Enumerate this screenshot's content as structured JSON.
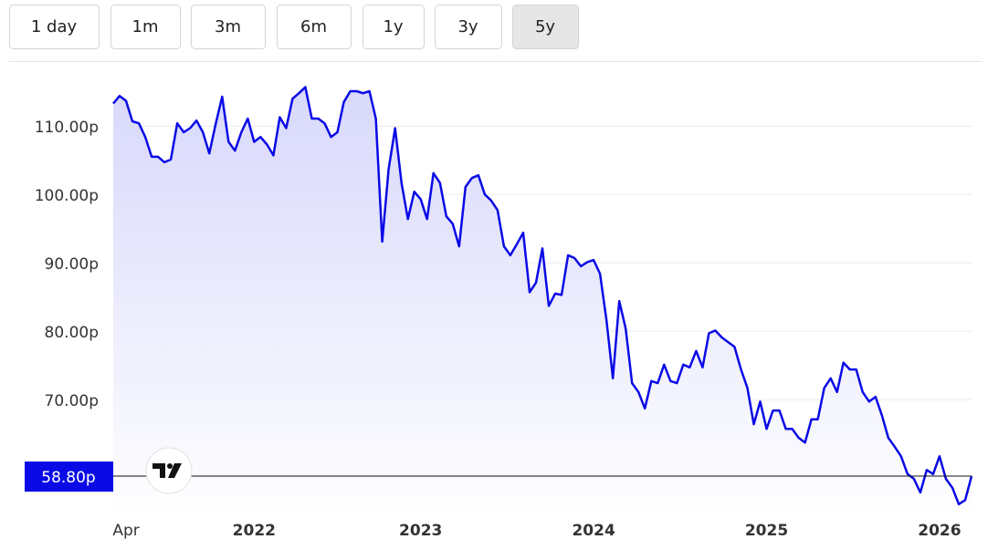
{
  "range_buttons": {
    "options": [
      "1 day",
      "1m",
      "3m",
      "6m",
      "1y",
      "3y",
      "5y"
    ],
    "selected": 6
  },
  "chart_data": {
    "type": "line",
    "categories": [
      null,
      null,
      "Apr",
      null,
      null,
      null,
      null,
      null,
      null,
      null,
      null,
      null,
      null,
      null,
      null,
      null,
      null,
      null,
      null,
      null,
      null,
      null,
      "2022",
      null,
      null,
      null,
      null,
      null,
      null,
      null,
      null,
      null,
      null,
      null,
      null,
      null,
      null,
      null,
      null,
      null,
      null,
      null,
      null,
      null,
      null,
      null,
      null,
      null,
      "2023",
      null,
      null,
      null,
      null,
      null,
      null,
      null,
      null,
      null,
      null,
      null,
      null,
      null,
      null,
      null,
      null,
      null,
      null,
      null,
      null,
      null,
      null,
      null,
      null,
      null,
      null,
      "2024",
      null,
      null,
      null,
      null,
      null,
      null,
      null,
      null,
      null,
      null,
      null,
      null,
      null,
      null,
      null,
      null,
      null,
      null,
      null,
      null,
      null,
      null,
      null,
      null,
      null,
      null,
      "2025",
      null,
      null,
      null,
      null,
      null,
      null,
      null,
      null,
      null,
      null,
      null,
      null,
      null,
      null,
      null,
      null,
      null,
      null,
      null,
      null,
      null,
      null,
      null,
      null,
      null,
      null,
      "2026",
      null,
      null,
      null,
      null,
      null
    ],
    "series": [
      {
        "color": "#0a0ae6",
        "values": [
          113.3,
          114.4,
          113.7,
          110.7,
          110.4,
          108.4,
          105.5,
          105.5,
          104.7,
          105.1,
          110.4,
          109.1,
          109.7,
          110.8,
          109.1,
          106.0,
          110.3,
          114.3,
          107.7,
          106.4,
          109.1,
          111.1,
          107.7,
          108.4,
          107.3,
          105.7,
          111.3,
          109.7,
          114.0,
          114.8,
          115.7,
          111.1,
          111.1,
          110.4,
          108.4,
          109.1,
          113.5,
          115.1,
          115.1,
          114.8,
          115.1,
          111.1,
          93.1,
          103.7,
          109.7,
          101.7,
          96.4,
          100.4,
          99.3,
          96.4,
          103.1,
          101.7,
          96.8,
          95.7,
          92.4,
          101.1,
          102.4,
          102.8,
          100.0,
          99.1,
          97.7,
          92.4,
          91.1,
          92.7,
          94.4,
          85.7,
          87.1,
          92.1,
          83.7,
          85.5,
          85.3,
          91.1,
          90.7,
          89.5,
          90.1,
          90.4,
          88.4,
          81.7,
          73.1,
          84.4,
          80.4,
          72.4,
          71.1,
          68.7,
          72.7,
          72.4,
          75.1,
          72.7,
          72.4,
          75.1,
          74.7,
          77.1,
          74.7,
          79.7,
          80.1,
          79.1,
          78.4,
          77.7,
          74.4,
          71.7,
          66.4,
          69.7,
          65.7,
          68.4,
          68.4,
          65.7,
          65.7,
          64.4,
          63.7,
          67.1,
          67.1,
          71.7,
          73.1,
          71.1,
          75.4,
          74.4,
          74.4,
          71.1,
          69.7,
          70.4,
          67.7,
          64.4,
          63.1,
          61.7,
          59.1,
          58.4,
          56.4,
          59.7,
          59.1,
          61.7,
          58.4,
          57.1,
          54.7,
          55.3,
          58.8
        ]
      }
    ],
    "ylim": [
      52.4,
      119.1
    ],
    "yticks": [
      {
        "value": 70,
        "label": "70.00p"
      },
      {
        "value": 80,
        "label": "80.00p"
      },
      {
        "value": 90,
        "label": "90.00p"
      },
      {
        "value": 100,
        "label": "100.00p"
      },
      {
        "value": 110,
        "label": "110.00p"
      }
    ],
    "grid": true,
    "current_price": {
      "value": 58.8,
      "label": "58.80p"
    }
  }
}
